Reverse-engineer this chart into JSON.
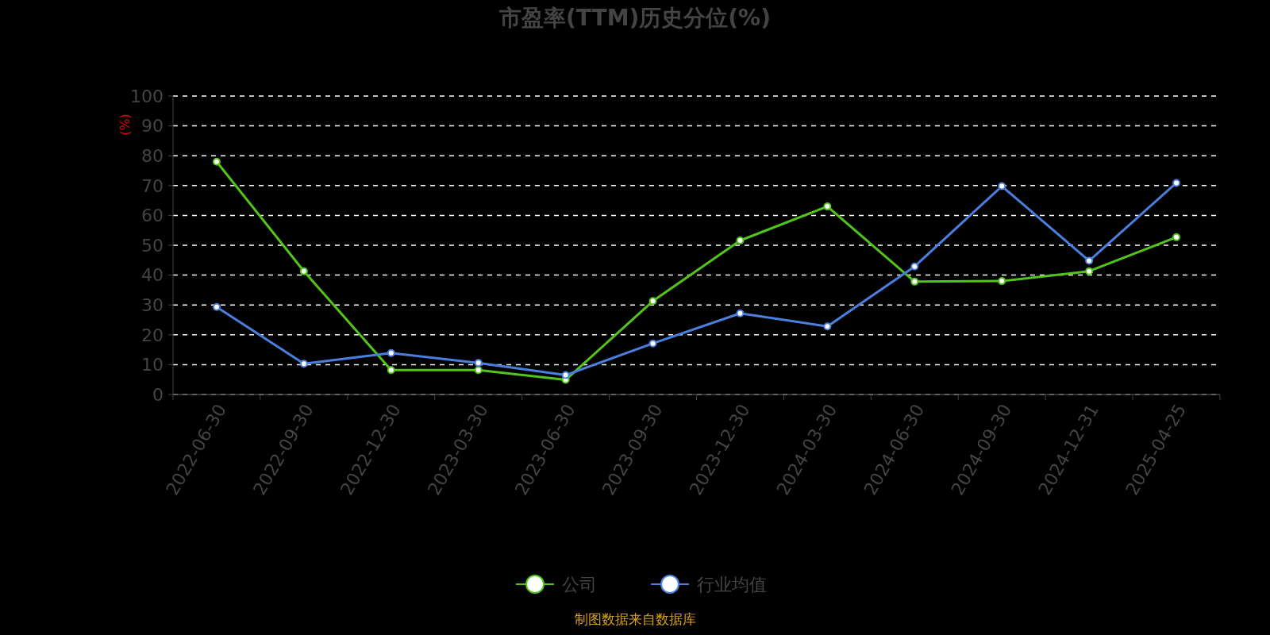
{
  "chart_data": {
    "type": "line",
    "title": "市盈率(TTM)历史分位(%)",
    "ylabel": "(%)",
    "categories": [
      "2022-06-30",
      "2022-09-30",
      "2022-12-30",
      "2023-03-30",
      "2023-06-30",
      "2023-09-30",
      "2023-12-30",
      "2024-03-30",
      "2024-06-30",
      "2024-09-30",
      "2024-12-31",
      "2025-04-25"
    ],
    "series": [
      {
        "name": "公司",
        "color": "#52c41a",
        "values": [
          78.0,
          41.3,
          8.2,
          8.2,
          4.9,
          31.3,
          51.6,
          63.0,
          37.8,
          38.0,
          41.3,
          52.7
        ]
      },
      {
        "name": "行业均值",
        "color": "#4a7fe0",
        "values": [
          29.3,
          10.3,
          13.9,
          10.6,
          6.5,
          17.1,
          27.2,
          22.8,
          42.9,
          69.8,
          44.8,
          70.9
        ]
      }
    ],
    "ylim": [
      0,
      100
    ],
    "yticks": [
      0,
      10,
      20,
      30,
      40,
      50,
      60,
      70,
      80,
      90,
      100
    ],
    "grid": "y",
    "legend": "bottom",
    "marker": "circle",
    "line_style": "solid",
    "annotations": [
      "制图数据来自数据库"
    ]
  }
}
